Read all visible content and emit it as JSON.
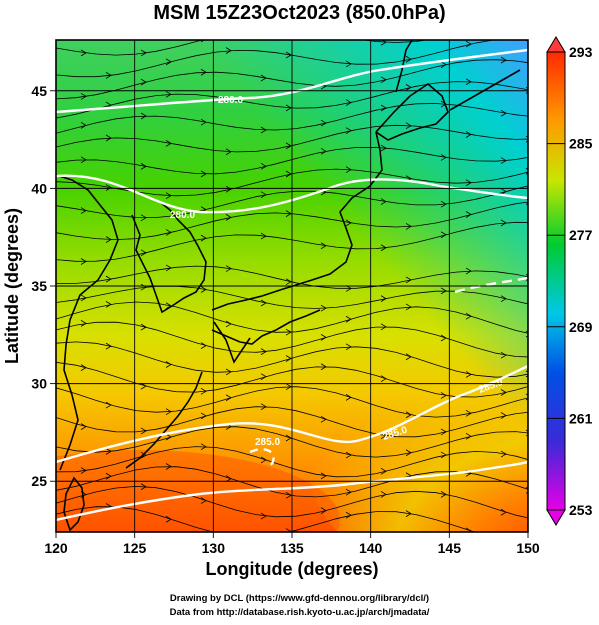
{
  "title": "MSM 15Z23Oct2023 (850.0hPa)",
  "axes": {
    "x_label": "Longitude (degrees)",
    "y_label": "Latitude  (degrees)",
    "x_ticks": [
      "120",
      "125",
      "130",
      "135",
      "140",
      "145",
      "150"
    ],
    "y_ticks": [
      "25",
      "30",
      "35",
      "40",
      "45"
    ],
    "x_range": [
      120,
      150
    ],
    "y_range": [
      22.4,
      47.6
    ],
    "gridlines": true
  },
  "colorbar": {
    "ticks": [
      "293",
      "285",
      "277",
      "269",
      "261",
      "253"
    ],
    "range": [
      253,
      293
    ],
    "colors": [
      "#e600e6",
      "#2a2ad8",
      "#00c8e6",
      "#00c800",
      "#c8e600",
      "#ff8c00",
      "#ff2a00"
    ]
  },
  "contour_labels": [
    "280.0",
    "280.0",
    "285.0",
    "285.0",
    "285.0"
  ],
  "credits": {
    "line1": "Drawing by DCL (https://www.gfd-dennou.org/library/dcl/)",
    "line2": "Data from http://database.rish.kyoto-u.ac.jp/arch/jmadata/"
  }
}
